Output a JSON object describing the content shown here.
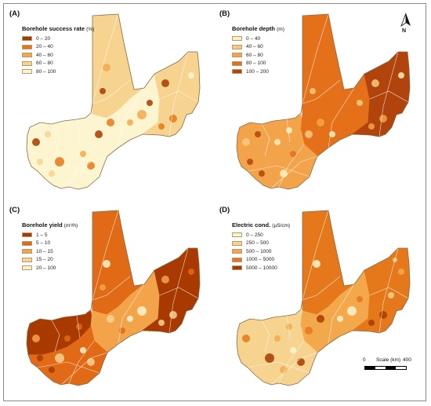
{
  "panels": [
    {
      "label": "(A)",
      "legend_title": "Borehole success rate",
      "legend_unit": "(%)",
      "classes": [
        "0 – 20",
        "20 – 40",
        "40 – 60",
        "60 – 80",
        "80 – 100"
      ],
      "colors": [
        "#a83a00",
        "#e5781a",
        "#f3a94b",
        "#f7d390",
        "#fdf5cf"
      ],
      "fill": {
        "north": 3,
        "west": 4,
        "center": 4,
        "east": 3,
        "south": 4
      }
    },
    {
      "label": "(B)",
      "legend_title": "Borehole depth",
      "legend_unit": "(m)",
      "classes": [
        "0 – 40",
        "40 – 60",
        "60 – 80",
        "80 – 100",
        "100 – 200"
      ],
      "colors": [
        "#fdf0c0",
        "#f7ca82",
        "#f3a34a",
        "#e5701a",
        "#b0440c"
      ],
      "fill": {
        "north": 3,
        "west": 2,
        "center": 3,
        "east": 4,
        "south": 2
      }
    },
    {
      "label": "(C)",
      "legend_title": "Borehole yield",
      "legend_unit": "(m³/h)",
      "classes": [
        "1 – 5",
        "5 – 10",
        "10 – 15",
        "15 – 20",
        "20 – 100"
      ],
      "colors": [
        "#a83a00",
        "#e06a15",
        "#f3a34a",
        "#f7d390",
        "#fdf5cf"
      ],
      "fill": {
        "north": 1,
        "west": 0,
        "center": 2,
        "east": 0,
        "south": 1
      }
    },
    {
      "label": "(D)",
      "legend_title": "Electric cond.",
      "legend_unit": "(µS/cm)",
      "classes": [
        "0 – 250",
        "250 – 500",
        "500 – 1000",
        "1000 – 5000",
        "5000 – 10000"
      ],
      "colors": [
        "#fdf5cf",
        "#f7d390",
        "#f3a94b",
        "#e5781a",
        "#a83a00"
      ],
      "fill": {
        "north": 3,
        "west": 1,
        "center": 2,
        "east": 3,
        "south": 1
      }
    }
  ],
  "north_arrow": {
    "letter": "N"
  },
  "scale": {
    "start": "0",
    "label": "Scale (km)",
    "end": "400"
  }
}
